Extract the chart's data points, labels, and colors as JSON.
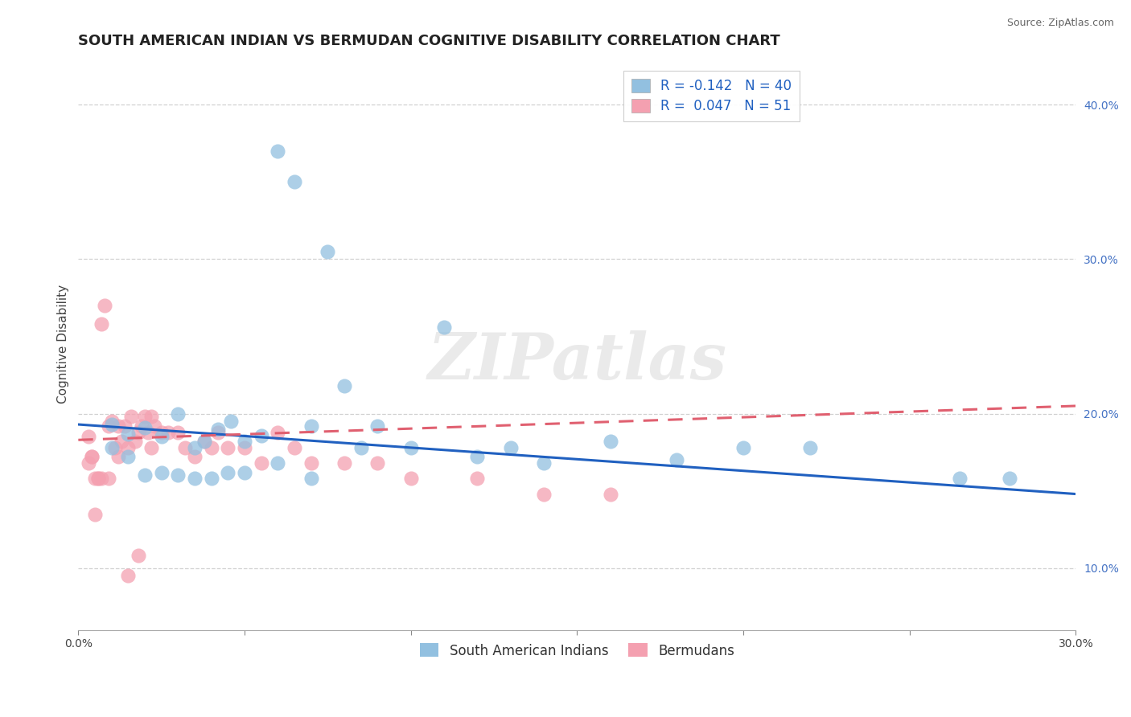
{
  "title": "SOUTH AMERICAN INDIAN VS BERMUDAN COGNITIVE DISABILITY CORRELATION CHART",
  "source": "Source: ZipAtlas.com",
  "ylabel": "Cognitive Disability",
  "xlim": [
    0.0,
    0.3
  ],
  "ylim": [
    0.06,
    0.43
  ],
  "xtick_positions": [
    0.0,
    0.05,
    0.1,
    0.15,
    0.2,
    0.25,
    0.3
  ],
  "xtick_labels": [
    "0.0%",
    "",
    "",
    "",
    "",
    "",
    "30.0%"
  ],
  "ytick_positions": [
    0.1,
    0.2,
    0.3,
    0.4
  ],
  "ytick_labels": [
    "10.0%",
    "20.0%",
    "30.0%",
    "40.0%"
  ],
  "legend_line1": "R = -0.142   N = 40",
  "legend_line2": "R =  0.047   N = 51",
  "blue_color": "#92C0E0",
  "pink_color": "#F4A0B0",
  "blue_line_color": "#2060C0",
  "pink_line_color": "#E06070",
  "watermark": "ZIPatlas",
  "blue_scatter_x": [
    0.01,
    0.015,
    0.02,
    0.025,
    0.03,
    0.035,
    0.038,
    0.042,
    0.046,
    0.05,
    0.055,
    0.06,
    0.065,
    0.07,
    0.075,
    0.08,
    0.085,
    0.09,
    0.1,
    0.11,
    0.12,
    0.13,
    0.14,
    0.16,
    0.18,
    0.2,
    0.01,
    0.015,
    0.02,
    0.025,
    0.03,
    0.035,
    0.04,
    0.045,
    0.05,
    0.06,
    0.07,
    0.22,
    0.265,
    0.28
  ],
  "blue_scatter_y": [
    0.193,
    0.187,
    0.191,
    0.185,
    0.2,
    0.178,
    0.182,
    0.19,
    0.195,
    0.182,
    0.186,
    0.37,
    0.35,
    0.192,
    0.305,
    0.218,
    0.178,
    0.192,
    0.178,
    0.256,
    0.172,
    0.178,
    0.168,
    0.182,
    0.17,
    0.178,
    0.178,
    0.172,
    0.16,
    0.162,
    0.16,
    0.158,
    0.158,
    0.162,
    0.162,
    0.168,
    0.158,
    0.178,
    0.158,
    0.158
  ],
  "pink_scatter_x": [
    0.003,
    0.004,
    0.005,
    0.006,
    0.007,
    0.008,
    0.009,
    0.01,
    0.011,
    0.012,
    0.013,
    0.014,
    0.015,
    0.016,
    0.017,
    0.018,
    0.019,
    0.02,
    0.021,
    0.022,
    0.023,
    0.025,
    0.027,
    0.03,
    0.032,
    0.035,
    0.038,
    0.04,
    0.042,
    0.045,
    0.05,
    0.055,
    0.06,
    0.065,
    0.07,
    0.08,
    0.09,
    0.1,
    0.12,
    0.14,
    0.16,
    0.003,
    0.005,
    0.007,
    0.009,
    0.012,
    0.015,
    0.018,
    0.022,
    0.004,
    0.006
  ],
  "pink_scatter_y": [
    0.185,
    0.172,
    0.135,
    0.158,
    0.258,
    0.27,
    0.192,
    0.195,
    0.178,
    0.192,
    0.182,
    0.192,
    0.178,
    0.198,
    0.182,
    0.188,
    0.192,
    0.198,
    0.188,
    0.178,
    0.192,
    0.188,
    0.188,
    0.188,
    0.178,
    0.172,
    0.182,
    0.178,
    0.188,
    0.178,
    0.178,
    0.168,
    0.188,
    0.178,
    0.168,
    0.168,
    0.168,
    0.158,
    0.158,
    0.148,
    0.148,
    0.168,
    0.158,
    0.158,
    0.158,
    0.172,
    0.095,
    0.108,
    0.198,
    0.172,
    0.158
  ],
  "blue_trend": [
    0.0,
    0.3,
    0.193,
    0.148
  ],
  "pink_trend": [
    0.0,
    0.3,
    0.183,
    0.205
  ],
  "grid_color": "#CCCCCC",
  "bg_color": "#FFFFFF",
  "title_fontsize": 13,
  "label_fontsize": 11,
  "tick_fontsize": 10,
  "legend_fontsize": 12
}
